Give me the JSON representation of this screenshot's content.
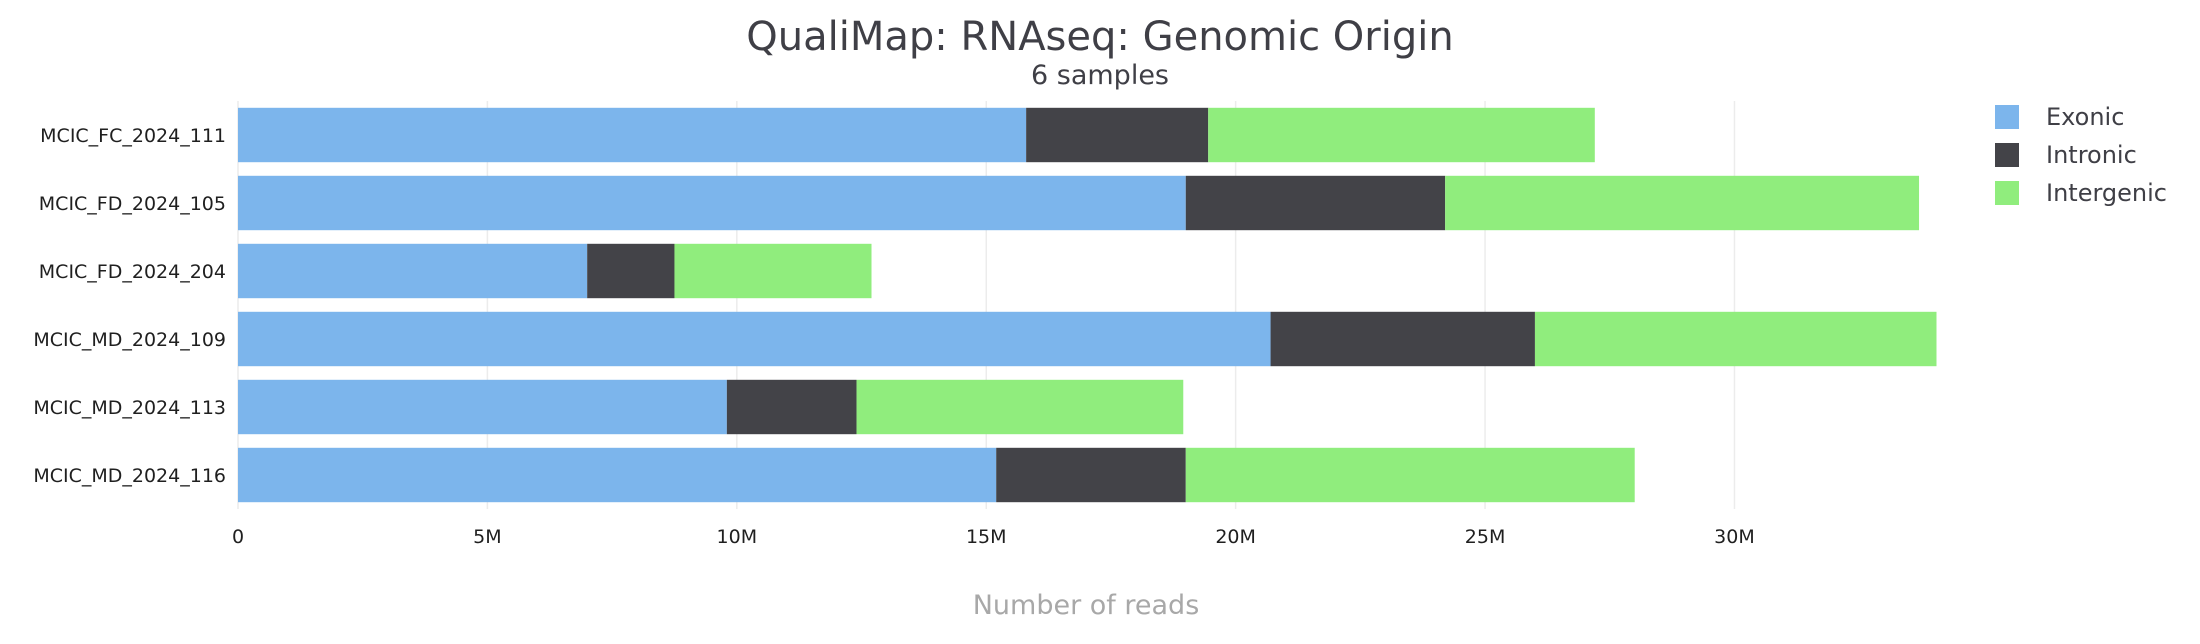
{
  "chart_data": {
    "type": "bar",
    "orientation": "horizontal",
    "stacked": true,
    "title": "QualiMap: RNAseq: Genomic Origin",
    "subtitle": "6 samples",
    "xlabel": "Number of reads",
    "ylabel": "",
    "categories": [
      "MCIC_FC_2024_111",
      "MCIC_FD_2024_105",
      "MCIC_FD_2024_204",
      "MCIC_MD_2024_109",
      "MCIC_MD_2024_113",
      "MCIC_MD_2024_116"
    ],
    "series": [
      {
        "name": "Exonic",
        "color": "#7cb5ec",
        "values": [
          15800000,
          19000000,
          7000000,
          20700000,
          9800000,
          15200000
        ]
      },
      {
        "name": "Intronic",
        "color": "#434348",
        "values": [
          3650000,
          5200000,
          1750000,
          5300000,
          2600000,
          3800000
        ]
      },
      {
        "name": "Intergenic",
        "color": "#90ed7d",
        "values": [
          7750000,
          9500000,
          3950000,
          8050000,
          6550000,
          9000000
        ]
      }
    ],
    "xlim": [
      0,
      34000000
    ],
    "x_ticks": [
      {
        "value": 0,
        "label": "0"
      },
      {
        "value": 5000000,
        "label": "5M"
      },
      {
        "value": 10000000,
        "label": "10M"
      },
      {
        "value": 15000000,
        "label": "15M"
      },
      {
        "value": 20000000,
        "label": "20M"
      },
      {
        "value": 25000000,
        "label": "25M"
      },
      {
        "value": 30000000,
        "label": "30M"
      }
    ],
    "grid": true,
    "legend_position": "top-right"
  }
}
